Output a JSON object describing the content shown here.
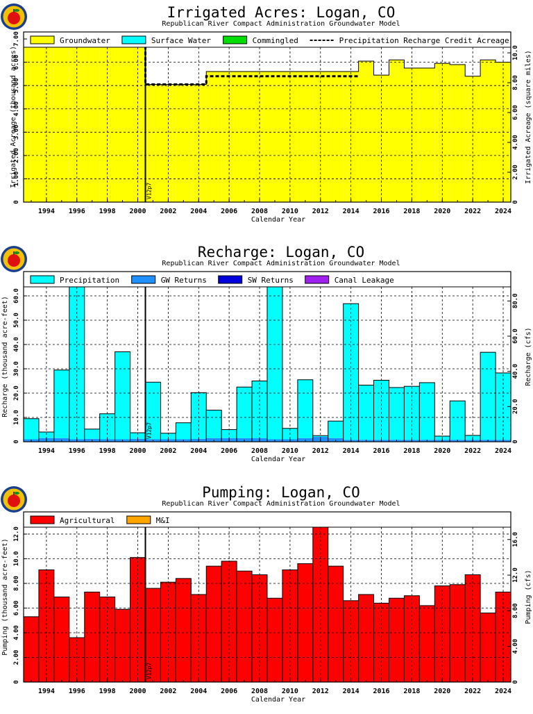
{
  "chart_data": [
    {
      "type": "bar",
      "title": "Irrigated Acres: Logan, CO",
      "subtitle": "Republican River Compact Administration Groundwater Model",
      "xlabel": "Calendar Year",
      "ylabel": "Irrigated Acreage (thousand acres)",
      "y2label": "Irrigated Acreage (square miles)",
      "xlim": [
        1992.5,
        2024.5
      ],
      "ylim": [
        0,
        7.3
      ],
      "y2lim": [
        0,
        11.4
      ],
      "x_ticks": [
        1994,
        1996,
        1998,
        2000,
        2002,
        2004,
        2006,
        2008,
        2010,
        2012,
        2014,
        2016,
        2018,
        2020,
        2022,
        2024
      ],
      "y_ticks": [
        0,
        1.0,
        2.0,
        3.0,
        4.0,
        5.0,
        6.0,
        7.0
      ],
      "y_tick_labels": [
        "0",
        "1.00",
        "2.00",
        "3.00",
        "4.00",
        "5.00",
        "6.00",
        "7.00"
      ],
      "y2_ticks": [
        0,
        2.0,
        4.0,
        6.0,
        8.0,
        10.0
      ],
      "y2_tick_labels": [
        "0",
        "2.00",
        "4.00",
        "6.00",
        "8.00",
        "10.0"
      ],
      "grid": true,
      "legend_position": "top",
      "legend": [
        {
          "label": "Groundwater",
          "color": "#ffff00",
          "kind": "box"
        },
        {
          "label": "Surface Water",
          "color": "#00ffff",
          "kind": "box"
        },
        {
          "label": "Commingled",
          "color": "#00dd00",
          "kind": "box"
        },
        {
          "label": "Precipitation Recharge Credit Acreage",
          "color": "#000000",
          "kind": "dash"
        }
      ],
      "marker": {
        "x": 2000.5,
        "label": "V12p7"
      },
      "categories": [
        1993,
        1994,
        1995,
        1996,
        1997,
        1998,
        1999,
        2000,
        2001,
        2002,
        2003,
        2004,
        2005,
        2006,
        2007,
        2008,
        2009,
        2010,
        2011,
        2012,
        2013,
        2014,
        2015,
        2016,
        2017,
        2018,
        2019,
        2020,
        2021,
        2022,
        2023,
        2024
      ],
      "stack_style": "step",
      "series": [
        {
          "name": "Groundwater",
          "color": "#ffff00",
          "values": [
            6.75,
            6.95,
            6.95,
            6.95,
            6.95,
            6.95,
            6.95,
            6.95,
            5.05,
            5.05,
            5.05,
            5.05,
            5.6,
            5.6,
            5.6,
            5.6,
            5.6,
            5.6,
            5.6,
            5.6,
            5.6,
            5.6,
            6.05,
            5.45,
            6.1,
            5.75,
            5.75,
            5.95,
            5.9,
            5.4,
            6.1,
            6.0
          ]
        }
      ],
      "line_series": {
        "name": "Precipitation Recharge Credit Acreage",
        "color": "#000000",
        "style": "dash",
        "x": [
          1992.5,
          2000.5,
          2000.5,
          2004.5,
          2004.5,
          2014.5
        ],
        "y": [
          6.95,
          6.95,
          5.05,
          5.05,
          5.4,
          5.4
        ]
      }
    },
    {
      "type": "bar",
      "title": "Recharge: Logan, CO",
      "subtitle": "Republican River Compact Administration Groundwater Model",
      "xlabel": "Calendar Year",
      "ylabel": "Recharge (thousand acre-feet)",
      "y2label": "Recharge (cfs)",
      "xlim": [
        1992.5,
        2024.5
      ],
      "ylim": [
        0,
        70
      ],
      "y2lim": [
        0,
        96.7
      ],
      "x_ticks": [
        1994,
        1996,
        1998,
        2000,
        2002,
        2004,
        2006,
        2008,
        2010,
        2012,
        2014,
        2016,
        2018,
        2020,
        2022,
        2024
      ],
      "y_ticks": [
        0,
        10,
        20,
        30,
        40,
        50,
        60
      ],
      "y_tick_labels": [
        "0",
        "10.0",
        "20.0",
        "30.0",
        "40.0",
        "50.0",
        "60.0"
      ],
      "y2_ticks": [
        0,
        20,
        40,
        60,
        80
      ],
      "y2_tick_labels": [
        "0",
        "20.0",
        "40.0",
        "60.0",
        "80.0"
      ],
      "grid": true,
      "legend_position": "top",
      "legend": [
        {
          "label": "Precipitation",
          "color": "#00ffff",
          "kind": "box"
        },
        {
          "label": "GW Returns",
          "color": "#1e90ff",
          "kind": "box"
        },
        {
          "label": "SW Returns",
          "color": "#0000dd",
          "kind": "box"
        },
        {
          "label": "Canal Leakage",
          "color": "#a020f0",
          "kind": "box"
        }
      ],
      "marker": {
        "x": 2000.5,
        "label": "V12p7"
      },
      "categories": [
        1993,
        1994,
        1995,
        1996,
        1997,
        1998,
        1999,
        2000,
        2001,
        2002,
        2003,
        2004,
        2005,
        2006,
        2007,
        2008,
        2009,
        2010,
        2011,
        2012,
        2013,
        2014,
        2015,
        2016,
        2017,
        2018,
        2019,
        2020,
        2021,
        2022,
        2023,
        2024
      ],
      "stack_style": "bar",
      "series": [
        {
          "name": "GW Returns",
          "color": "#1e90ff",
          "values": [
            1.0,
            1.5,
            1.5,
            1.0,
            1.2,
            1.0,
            1.0,
            1.2,
            1.0,
            1.0,
            1.0,
            1.2,
            1.5,
            1.5,
            1.5,
            1.5,
            1.0,
            1.0,
            1.5,
            2.0,
            1.5,
            0.8,
            0.8,
            0.8,
            0.8,
            0.8,
            0.8,
            0.8,
            0.8,
            0.8,
            0.8,
            0.8
          ]
        },
        {
          "name": "Precipitation",
          "color": "#00ffff",
          "values": [
            8.5,
            2.5,
            28.0,
            63.0,
            4.0,
            10.5,
            36.0,
            2.5,
            23.5,
            2.5,
            6.8,
            19.0,
            11.5,
            3.5,
            21.0,
            23.5,
            69.0,
            4.5,
            24.0,
            0.5,
            7.0,
            56.0,
            22.5,
            24.5,
            21.5,
            22.0,
            23.5,
            1.5,
            16.0,
            1.8,
            36.0,
            27.5
          ]
        }
      ]
    },
    {
      "type": "bar",
      "title": "Pumping: Logan, CO",
      "subtitle": "Republican River Compact Administration Groundwater Model",
      "xlabel": "Calendar Year",
      "ylabel": "Pumping (thousand acre-feet)",
      "y2label": "Pumping (cfs)",
      "xlim": [
        1992.5,
        2024.5
      ],
      "ylim": [
        0,
        13.8
      ],
      "y2lim": [
        0,
        19.1
      ],
      "x_ticks": [
        1994,
        1996,
        1998,
        2000,
        2002,
        2004,
        2006,
        2008,
        2010,
        2012,
        2014,
        2016,
        2018,
        2020,
        2022,
        2024
      ],
      "y_ticks": [
        0,
        2,
        4,
        6,
        8,
        10,
        12
      ],
      "y_tick_labels": [
        "0",
        "2.00",
        "4.00",
        "6.00",
        "8.00",
        "10.0",
        "12.0"
      ],
      "y2_ticks": [
        0,
        4,
        8,
        12,
        16
      ],
      "y2_tick_labels": [
        "0",
        "4.00",
        "8.00",
        "12.0",
        "16.0"
      ],
      "grid": true,
      "legend_position": "top",
      "legend": [
        {
          "label": "Agricultural",
          "color": "#ff0000",
          "kind": "box"
        },
        {
          "label": "M&I",
          "color": "#ffa500",
          "kind": "box"
        }
      ],
      "marker": {
        "x": 2000.5,
        "label": "V12p7"
      },
      "categories": [
        1993,
        1994,
        1995,
        1996,
        1997,
        1998,
        1999,
        2000,
        2001,
        2002,
        2003,
        2004,
        2005,
        2006,
        2007,
        2008,
        2009,
        2010,
        2011,
        2012,
        2013,
        2014,
        2015,
        2016,
        2017,
        2018,
        2019,
        2020,
        2021,
        2022,
        2023,
        2024
      ],
      "stack_style": "bar",
      "series": [
        {
          "name": "Agricultural",
          "color": "#ff0000",
          "values": [
            5.3,
            9.1,
            6.9,
            3.6,
            7.3,
            6.9,
            5.9,
            10.1,
            7.6,
            8.1,
            8.4,
            7.1,
            9.4,
            9.8,
            9.0,
            8.7,
            6.8,
            9.1,
            9.6,
            13.2,
            9.4,
            6.6,
            7.1,
            6.4,
            6.8,
            7.0,
            6.2,
            7.8,
            7.9,
            8.7,
            5.6,
            7.3
          ]
        }
      ]
    }
  ]
}
